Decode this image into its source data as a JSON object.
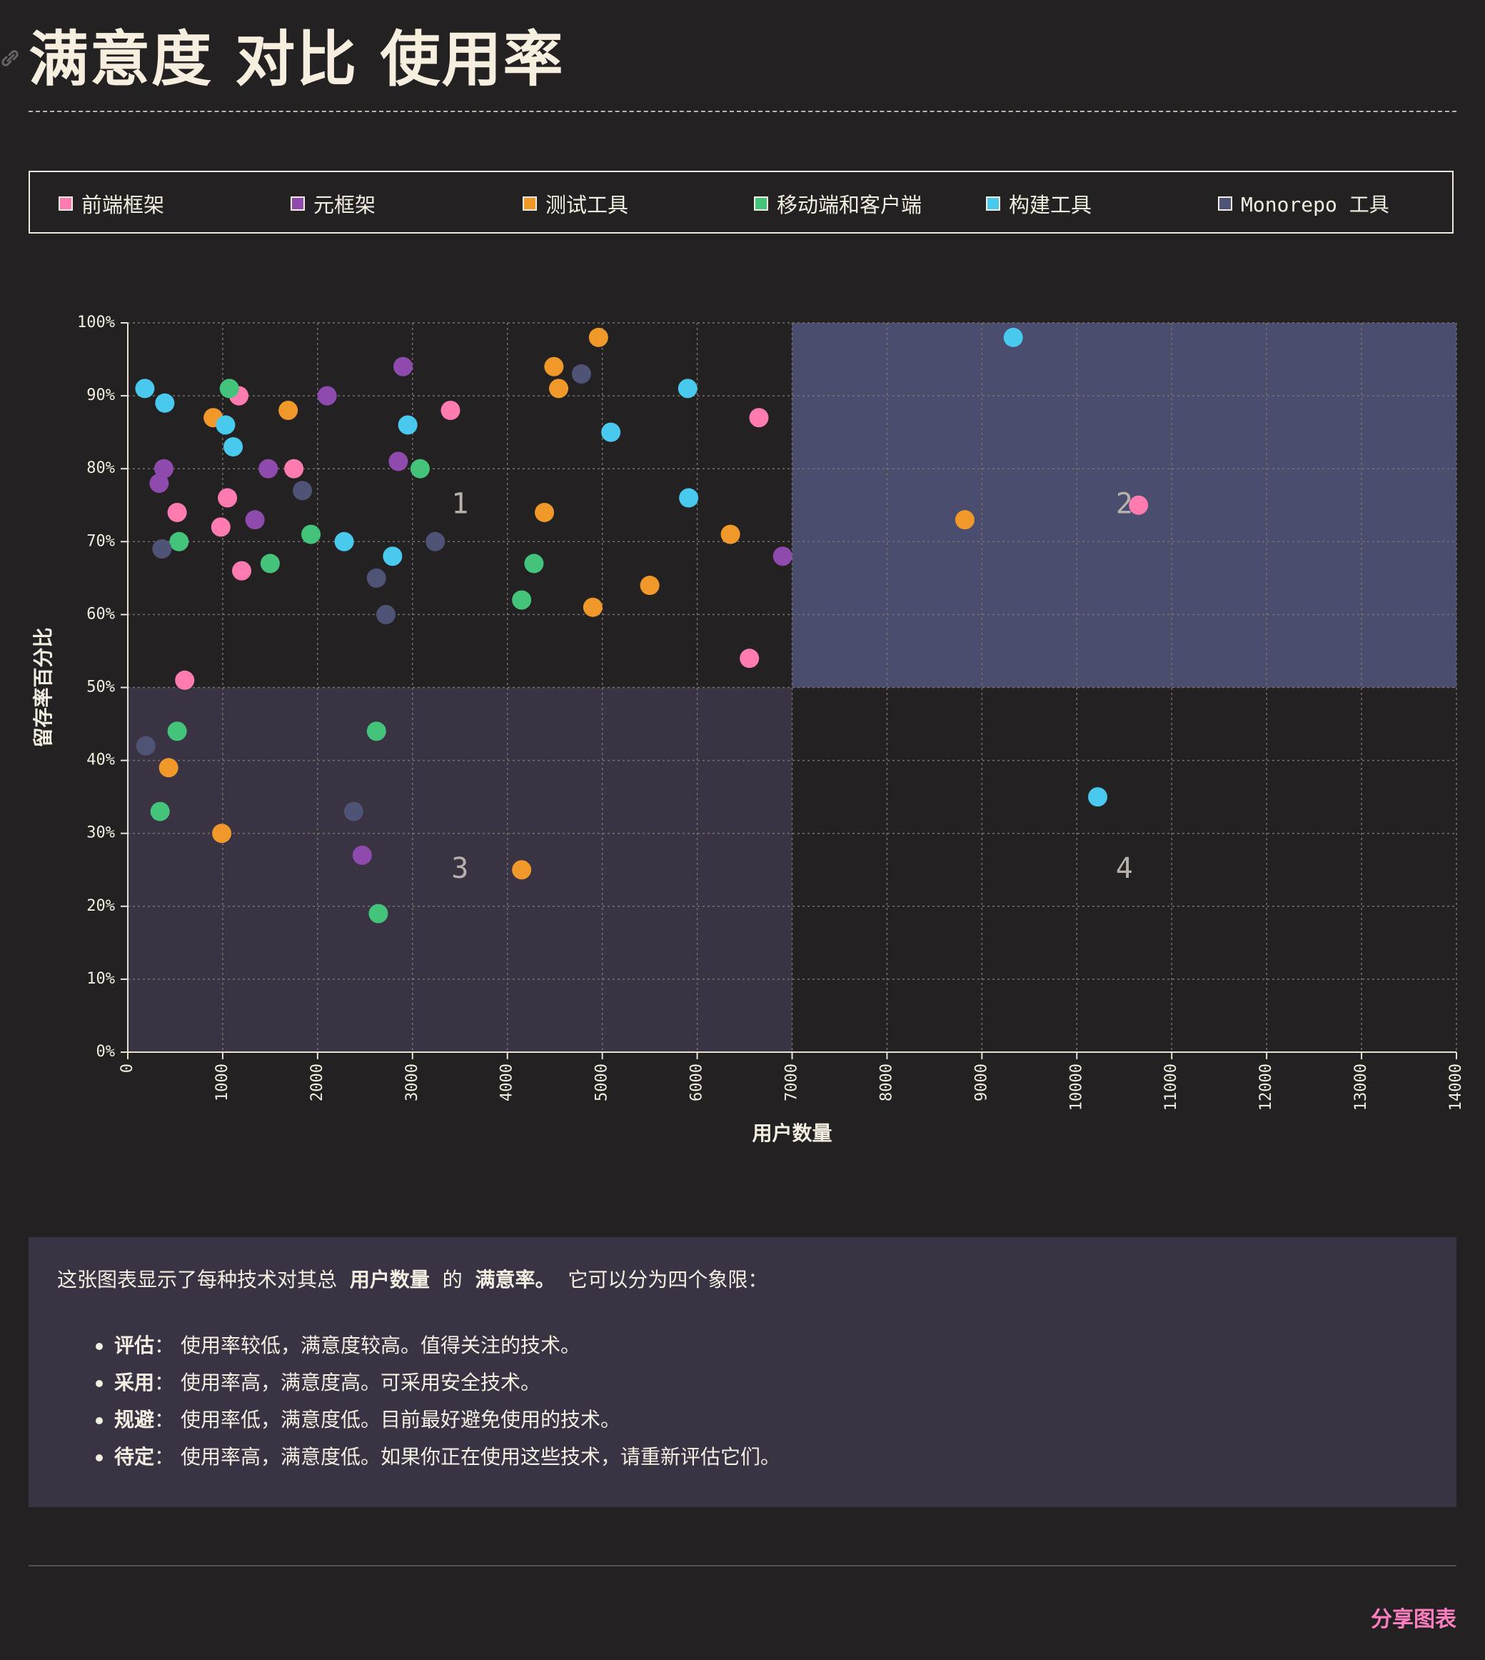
{
  "page": {
    "title": "满意度 对比 使用率",
    "share_label": "分享图表"
  },
  "legend": [
    {
      "label": "前端框架",
      "color": "#ff7bb0"
    },
    {
      "label": "元框架",
      "color": "#8e4bad"
    },
    {
      "label": "测试工具",
      "color": "#f0982a"
    },
    {
      "label": "移动端和客户端",
      "color": "#44c37a"
    },
    {
      "label": "构建工具",
      "color": "#49c9ee"
    },
    {
      "label": "Monorepo 工具",
      "color": "#4f5477"
    }
  ],
  "description": {
    "intro_a": "这张图表显示了每种技术对其总",
    "intro_b": "用户数量",
    "intro_c": "的",
    "intro_d": "满意率。",
    "intro_e": "它可以分为四个象限：",
    "items": [
      {
        "term": "评估",
        "sep": "：",
        "text": "使用率较低，满意度较高。值得关注的技术。"
      },
      {
        "term": "采用",
        "sep": "：",
        "text": "使用率高，满意度高。可采用安全技术。"
      },
      {
        "term": "规避",
        "sep": "：",
        "text": "使用率低，满意度低。目前最好避免使用的技术。"
      },
      {
        "term": "待定",
        "sep": "：",
        "text": "使用率高，满意度低。如果你正在使用这些技术，请重新评估它们。"
      }
    ]
  },
  "chart_data": {
    "type": "scatter",
    "xlabel": "用户数量",
    "ylabel": "留存率百分比",
    "xlim": [
      0,
      14000
    ],
    "ylim": [
      0,
      100
    ],
    "x_ticks": [
      "0",
      "1000",
      "2000",
      "3000",
      "4000",
      "5000",
      "6000",
      "7000",
      "8000",
      "9000",
      "10000",
      "11000",
      "12000",
      "13000",
      "14000"
    ],
    "y_ticks": [
      "0%",
      "10%",
      "20%",
      "30%",
      "40%",
      "50%",
      "60%",
      "70%",
      "80%",
      "90%",
      "100%"
    ],
    "grid": true,
    "quadrants": [
      {
        "label": "1",
        "x": [
          0,
          7000
        ],
        "y": [
          50,
          100
        ],
        "fill": "none"
      },
      {
        "label": "2",
        "x": [
          7000,
          14000
        ],
        "y": [
          50,
          100
        ],
        "fill": "#4a4d6e"
      },
      {
        "label": "3",
        "x": [
          0,
          7000
        ],
        "y": [
          0,
          50
        ],
        "fill": "#3a3343"
      },
      {
        "label": "4",
        "x": [
          7000,
          14000
        ],
        "y": [
          0,
          50
        ],
        "fill": "none"
      }
    ],
    "series": [
      {
        "name": "前端框架",
        "color": "#ff7bb0",
        "points": [
          [
            1170,
            90
          ],
          [
            3400,
            88
          ],
          [
            6650,
            87
          ],
          [
            1750,
            80
          ],
          [
            1050,
            76
          ],
          [
            520,
            74
          ],
          [
            980,
            72
          ],
          [
            1200,
            66
          ],
          [
            600,
            51
          ],
          [
            6550,
            54
          ],
          [
            10650,
            75
          ]
        ]
      },
      {
        "name": "元框架",
        "color": "#8e4bad",
        "points": [
          [
            2900,
            94
          ],
          [
            2100,
            90
          ],
          [
            380,
            80
          ],
          [
            1480,
            80
          ],
          [
            2850,
            81
          ],
          [
            330,
            78
          ],
          [
            1340,
            73
          ],
          [
            6900,
            68
          ],
          [
            2470,
            27
          ]
        ]
      },
      {
        "name": "测试工具",
        "color": "#f0982a",
        "points": [
          [
            4960,
            98
          ],
          [
            4490,
            94
          ],
          [
            4540,
            91
          ],
          [
            900,
            87
          ],
          [
            1690,
            88
          ],
          [
            4390,
            74
          ],
          [
            6350,
            71
          ],
          [
            5500,
            64
          ],
          [
            4900,
            61
          ],
          [
            8820,
            73
          ],
          [
            430,
            39
          ],
          [
            990,
            30
          ],
          [
            4150,
            25
          ]
        ]
      },
      {
        "name": "移动端和客户端",
        "color": "#44c37a",
        "points": [
          [
            1070,
            91
          ],
          [
            3080,
            80
          ],
          [
            540,
            70
          ],
          [
            1500,
            67
          ],
          [
            1930,
            71
          ],
          [
            4280,
            67
          ],
          [
            4150,
            62
          ],
          [
            520,
            44
          ],
          [
            2620,
            44
          ],
          [
            340,
            33
          ],
          [
            2640,
            19
          ]
        ]
      },
      {
        "name": "构建工具",
        "color": "#49c9ee",
        "points": [
          [
            180,
            91
          ],
          [
            390,
            89
          ],
          [
            1030,
            86
          ],
          [
            1110,
            83
          ],
          [
            2950,
            86
          ],
          [
            5900,
            91
          ],
          [
            5090,
            85
          ],
          [
            5910,
            76
          ],
          [
            2280,
            70
          ],
          [
            2790,
            68
          ],
          [
            9330,
            98
          ],
          [
            10220,
            35
          ]
        ]
      },
      {
        "name": "Monorepo 工具",
        "color": "#4f5477",
        "points": [
          [
            4780,
            93
          ],
          [
            1840,
            77
          ],
          [
            360,
            69
          ],
          [
            3240,
            70
          ],
          [
            2620,
            65
          ],
          [
            2720,
            60
          ],
          [
            190,
            42
          ],
          [
            2380,
            33
          ]
        ]
      }
    ]
  }
}
